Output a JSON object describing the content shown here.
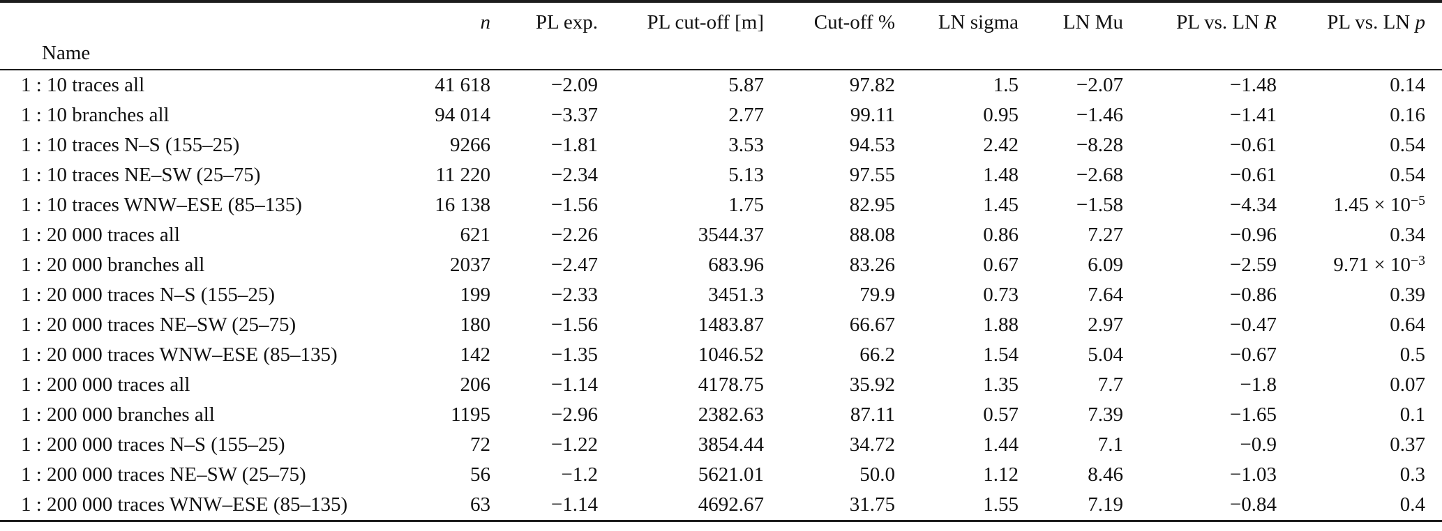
{
  "table": {
    "columns": [
      {
        "key": "name",
        "label": "Name",
        "label_italic": ""
      },
      {
        "key": "n",
        "label": "",
        "label_italic": "n"
      },
      {
        "key": "pl_exp",
        "label": "PL exp.",
        "label_italic": ""
      },
      {
        "key": "pl_cutoff",
        "label": "PL cut-off [m]",
        "label_italic": ""
      },
      {
        "key": "cutoff_pct",
        "label": "Cut-off %",
        "label_italic": ""
      },
      {
        "key": "ln_sigma",
        "label": "LN sigma",
        "label_italic": ""
      },
      {
        "key": "ln_mu",
        "label": "LN Mu",
        "label_italic": ""
      },
      {
        "key": "pl_vs_ln_r",
        "label": "PL vs. LN ",
        "label_italic": "R"
      },
      {
        "key": "pl_vs_ln_p",
        "label": "PL vs. LN ",
        "label_italic": "p"
      }
    ],
    "rows": [
      {
        "name": "1 : 10 traces all",
        "n": "41 618",
        "pl_exp": "−2.09",
        "pl_cutoff": "5.87",
        "cutoff_pct": "97.82",
        "ln_sigma": "1.5",
        "ln_mu": "−2.07",
        "pl_vs_ln_r": "−1.48",
        "pl_vs_ln_p": "0.14"
      },
      {
        "name": "1 : 10 branches all",
        "n": "94 014",
        "pl_exp": "−3.37",
        "pl_cutoff": "2.77",
        "cutoff_pct": "99.11",
        "ln_sigma": "0.95",
        "ln_mu": "−1.46",
        "pl_vs_ln_r": "−1.41",
        "pl_vs_ln_p": "0.16"
      },
      {
        "name": "1 : 10 traces N–S (155–25)",
        "n": "9266",
        "pl_exp": "−1.81",
        "pl_cutoff": "3.53",
        "cutoff_pct": "94.53",
        "ln_sigma": "2.42",
        "ln_mu": "−8.28",
        "pl_vs_ln_r": "−0.61",
        "pl_vs_ln_p": "0.54"
      },
      {
        "name": "1 : 10 traces NE–SW (25–75)",
        "n": "11 220",
        "pl_exp": "−2.34",
        "pl_cutoff": "5.13",
        "cutoff_pct": "97.55",
        "ln_sigma": "1.48",
        "ln_mu": "−2.68",
        "pl_vs_ln_r": "−0.61",
        "pl_vs_ln_p": "0.54"
      },
      {
        "name": "1 : 10 traces WNW–ESE (85–135)",
        "n": "16 138",
        "pl_exp": "−1.56",
        "pl_cutoff": "1.75",
        "cutoff_pct": "82.95",
        "ln_sigma": "1.45",
        "ln_mu": "−1.58",
        "pl_vs_ln_r": "−4.34",
        "pl_vs_ln_p": "1.45 × 10^−5"
      },
      {
        "name": "1 : 20 000 traces all",
        "n": "621",
        "pl_exp": "−2.26",
        "pl_cutoff": "3544.37",
        "cutoff_pct": "88.08",
        "ln_sigma": "0.86",
        "ln_mu": "7.27",
        "pl_vs_ln_r": "−0.96",
        "pl_vs_ln_p": "0.34"
      },
      {
        "name": "1 : 20 000 branches all",
        "n": "2037",
        "pl_exp": "−2.47",
        "pl_cutoff": "683.96",
        "cutoff_pct": "83.26",
        "ln_sigma": "0.67",
        "ln_mu": "6.09",
        "pl_vs_ln_r": "−2.59",
        "pl_vs_ln_p": "9.71 × 10^−3"
      },
      {
        "name": "1 : 20 000 traces N–S (155–25)",
        "n": "199",
        "pl_exp": "−2.33",
        "pl_cutoff": "3451.3",
        "cutoff_pct": "79.9",
        "ln_sigma": "0.73",
        "ln_mu": "7.64",
        "pl_vs_ln_r": "−0.86",
        "pl_vs_ln_p": "0.39"
      },
      {
        "name": "1 : 20 000 traces NE–SW (25–75)",
        "n": "180",
        "pl_exp": "−1.56",
        "pl_cutoff": "1483.87",
        "cutoff_pct": "66.67",
        "ln_sigma": "1.88",
        "ln_mu": "2.97",
        "pl_vs_ln_r": "−0.47",
        "pl_vs_ln_p": "0.64"
      },
      {
        "name": "1 : 20 000 traces WNW–ESE (85–135)",
        "n": "142",
        "pl_exp": "−1.35",
        "pl_cutoff": "1046.52",
        "cutoff_pct": "66.2",
        "ln_sigma": "1.54",
        "ln_mu": "5.04",
        "pl_vs_ln_r": "−0.67",
        "pl_vs_ln_p": "0.5"
      },
      {
        "name": "1 : 200 000 traces all",
        "n": "206",
        "pl_exp": "−1.14",
        "pl_cutoff": "4178.75",
        "cutoff_pct": "35.92",
        "ln_sigma": "1.35",
        "ln_mu": "7.7",
        "pl_vs_ln_r": "−1.8",
        "pl_vs_ln_p": "0.07"
      },
      {
        "name": "1 : 200 000 branches all",
        "n": "1195",
        "pl_exp": "−2.96",
        "pl_cutoff": "2382.63",
        "cutoff_pct": "87.11",
        "ln_sigma": "0.57",
        "ln_mu": "7.39",
        "pl_vs_ln_r": "−1.65",
        "pl_vs_ln_p": "0.1"
      },
      {
        "name": "1 : 200 000 traces N–S (155–25)",
        "n": "72",
        "pl_exp": "−1.22",
        "pl_cutoff": "3854.44",
        "cutoff_pct": "34.72",
        "ln_sigma": "1.44",
        "ln_mu": "7.1",
        "pl_vs_ln_r": "−0.9",
        "pl_vs_ln_p": "0.37"
      },
      {
        "name": "1 : 200 000 traces NE–SW (25–75)",
        "n": "56",
        "pl_exp": "−1.2",
        "pl_cutoff": "5621.01",
        "cutoff_pct": "50.0",
        "ln_sigma": "1.12",
        "ln_mu": "8.46",
        "pl_vs_ln_r": "−1.03",
        "pl_vs_ln_p": "0.3"
      },
      {
        "name": "1 : 200 000 traces WNW–ESE (85–135)",
        "n": "63",
        "pl_exp": "−1.14",
        "pl_cutoff": "4692.67",
        "cutoff_pct": "31.75",
        "ln_sigma": "1.55",
        "ln_mu": "7.19",
        "pl_vs_ln_r": "−0.84",
        "pl_vs_ln_p": "0.4"
      }
    ]
  }
}
